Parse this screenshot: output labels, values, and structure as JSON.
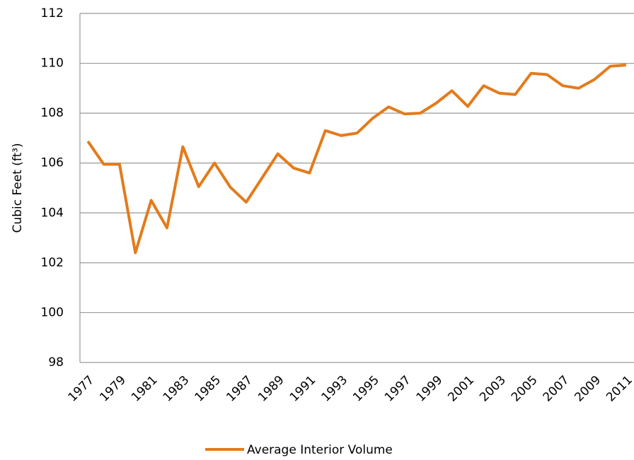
{
  "chart_data": {
    "type": "line",
    "y_label": "Cubic Feet  (ft³)",
    "categories": [
      "1977",
      null,
      "1979",
      null,
      "1981",
      null,
      "1983",
      null,
      "1985",
      null,
      "1987",
      null,
      "1989",
      null,
      "1991",
      null,
      "1993",
      null,
      "1995",
      null,
      "1997",
      null,
      "1999",
      null,
      "2001",
      null,
      "2003",
      null,
      "2005",
      null,
      "2007",
      null,
      "2009",
      null,
      "2011"
    ],
    "series": [
      {
        "name": "Average Interior Volume",
        "color": "#e37b1c",
        "values": [
          106.87,
          105.95,
          105.95,
          102.4,
          104.5,
          103.4,
          106.65,
          105.05,
          106.0,
          105.03,
          104.43,
          105.4,
          106.37,
          105.8,
          105.6,
          107.3,
          107.1,
          107.2,
          107.8,
          108.25,
          107.97,
          108.0,
          108.4,
          108.9,
          108.27,
          109.1,
          108.8,
          108.75,
          109.6,
          109.55,
          109.1,
          109.0,
          109.35,
          109.88,
          109.93
        ]
      }
    ],
    "ylim": [
      98,
      112
    ],
    "yticks": [
      98,
      100,
      102,
      104,
      106,
      108,
      110,
      112
    ],
    "grid": true,
    "legend": "bottom"
  }
}
